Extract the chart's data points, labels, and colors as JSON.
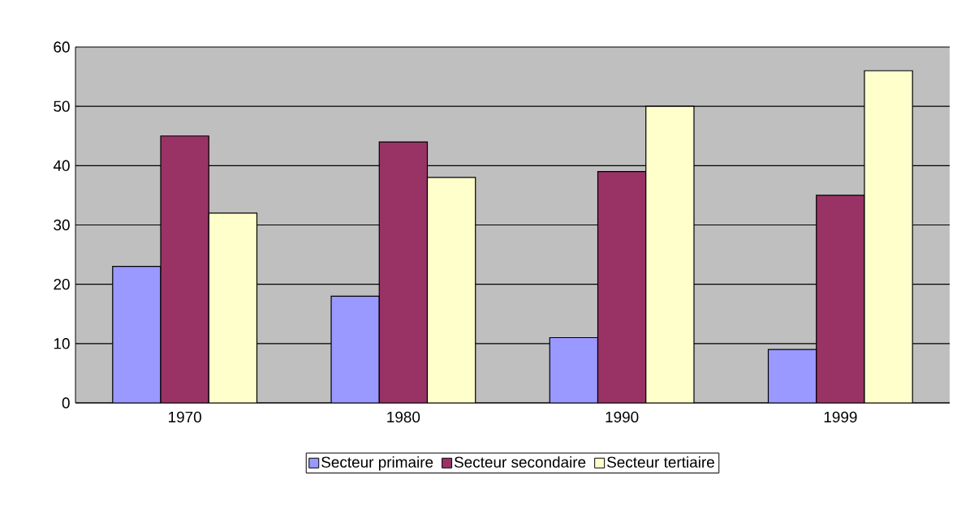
{
  "chart_data": {
    "type": "bar",
    "categories": [
      "1970",
      "1980",
      "1990",
      "1999"
    ],
    "series": [
      {
        "name": "Secteur primaire",
        "color": "#9999ff",
        "values": [
          23,
          18,
          11,
          9
        ]
      },
      {
        "name": "Secteur secondaire",
        "color": "#993366",
        "values": [
          45,
          44,
          39,
          35
        ]
      },
      {
        "name": "Secteur tertiaire",
        "color": "#ffffcc",
        "values": [
          32,
          38,
          50,
          56
        ]
      }
    ],
    "ylim": [
      0,
      60
    ],
    "yticks": [
      0,
      10,
      20,
      30,
      40,
      50,
      60
    ],
    "grid": "y",
    "legend": "bottom"
  }
}
